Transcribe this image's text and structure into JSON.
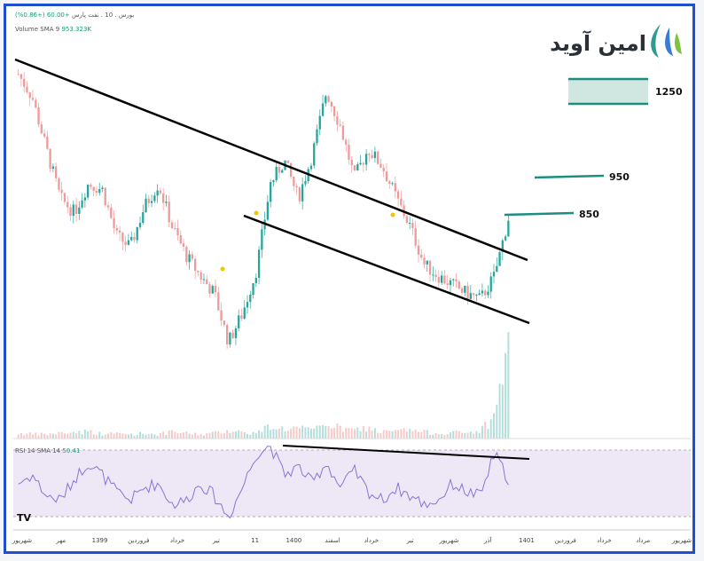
{
  "header": {
    "symbol_line": "بورس . 10 . نفت پارس",
    "change_text": "+60.00 (+0.86%)",
    "volume_label": "Volume SMA 9",
    "volume_value": "953.323K",
    "rsi_label": "RSI 14 SMA 14",
    "rsi_value": "50.41"
  },
  "logo": {
    "text": "امین آوید",
    "brand_color": "#2e9b8f"
  },
  "levels": [
    {
      "label": "1250",
      "type": "zone"
    },
    {
      "label": "950",
      "type": "line"
    },
    {
      "label": "850",
      "type": "line"
    }
  ],
  "colors": {
    "up": "#26a69a",
    "down": "#ef9a9a",
    "level": "#1a8f7f",
    "trendline": "#000000",
    "rsi_line": "#8a74d6",
    "rsi_band": "#ede7f6",
    "dots": "#f5c400",
    "frame": "#1d4fd0"
  },
  "watermark": "TV",
  "chart_data": {
    "type": "candlestick",
    "price_scale": "not shown",
    "x_axis_labels": [
      "شهریور",
      "مهر",
      "1399",
      "فروردین",
      "خرداد",
      "تیر",
      "11",
      "1400",
      "اسفند",
      "خرداد",
      "تیر",
      "شهریور",
      "آذر",
      "1401",
      "فروردین",
      "خرداد",
      "مرداد",
      "شهریور"
    ],
    "price_path_relative": [
      0.98,
      0.9,
      0.72,
      0.55,
      0.5,
      0.6,
      0.58,
      0.42,
      0.38,
      0.52,
      0.6,
      0.45,
      0.35,
      0.28,
      0.22,
      0.05,
      0.15,
      0.3,
      0.6,
      0.68,
      0.55,
      0.7,
      0.92,
      0.8,
      0.62,
      0.72,
      0.66,
      0.55,
      0.45,
      0.32,
      0.28,
      0.25,
      0.22,
      0.2,
      0.28,
      0.48
    ],
    "rsi_path_relative": [
      0.5,
      0.6,
      0.35,
      0.3,
      0.55,
      0.75,
      0.6,
      0.4,
      0.3,
      0.45,
      0.5,
      0.25,
      0.3,
      0.5,
      0.35,
      0.1,
      0.45,
      0.85,
      0.95,
      0.6,
      0.7,
      0.5,
      0.75,
      0.45,
      0.65,
      0.4,
      0.3,
      0.45,
      0.35,
      0.25,
      0.3,
      0.5,
      0.4,
      0.35,
      0.85,
      0.55
    ],
    "volume_path_relative": [
      0.05,
      0.04,
      0.04,
      0.05,
      0.06,
      0.07,
      0.04,
      0.05,
      0.04,
      0.05,
      0.04,
      0.06,
      0.05,
      0.04,
      0.05,
      0.08,
      0.06,
      0.05,
      0.12,
      0.09,
      0.1,
      0.07,
      0.15,
      0.09,
      0.08,
      0.1,
      0.06,
      0.07,
      0.08,
      0.06,
      0.05,
      0.06,
      0.05,
      0.08,
      0.2,
      0.95
    ],
    "annotations": [
      "descending channel",
      "RSI resistance trendline",
      "target 850",
      "target 950",
      "target 1250"
    ]
  }
}
